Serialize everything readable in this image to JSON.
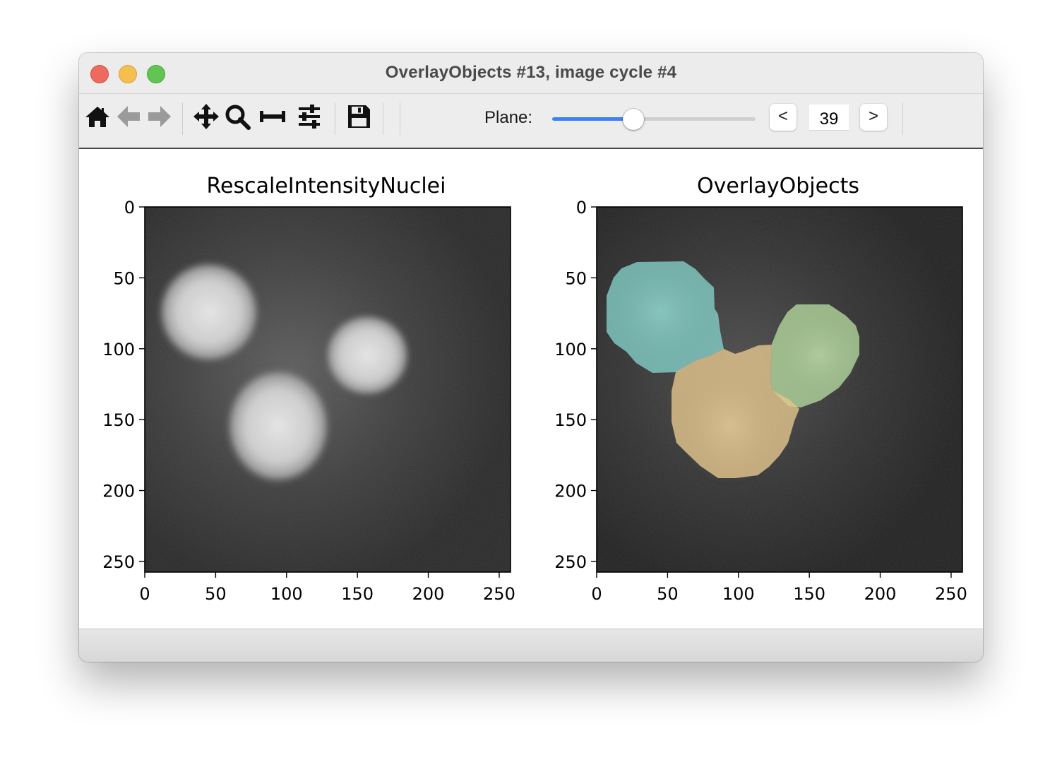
{
  "window": {
    "title": "OverlayObjects #13, image cycle #4"
  },
  "toolbar": {
    "icons": [
      "home-icon",
      "back-icon",
      "forward-icon",
      "pan-icon",
      "zoom-icon",
      "subplots-icon",
      "configure-icon",
      "save-icon"
    ],
    "plane_label": "Plane:",
    "plane_value": "39",
    "plane_fraction": 0.4,
    "prev_label": "<",
    "next_label": ">",
    "slider_color": "#3a82f7"
  },
  "figure": {
    "left_plot": {
      "title": "RescaleIntensityNuclei",
      "x_ticks": [
        "0",
        "50",
        "100",
        "150",
        "200",
        "250"
      ],
      "y_ticks": [
        "0",
        "50",
        "100",
        "150",
        "200",
        "250"
      ]
    },
    "right_plot": {
      "title": "OverlayObjects",
      "x_ticks": [
        "0",
        "50",
        "100",
        "150",
        "200",
        "250"
      ],
      "y_ticks": [
        "0",
        "50",
        "100",
        "150",
        "200",
        "250"
      ],
      "object_colors": [
        "#7ed0c8",
        "#e8c88a",
        "#b2d99a"
      ]
    }
  }
}
